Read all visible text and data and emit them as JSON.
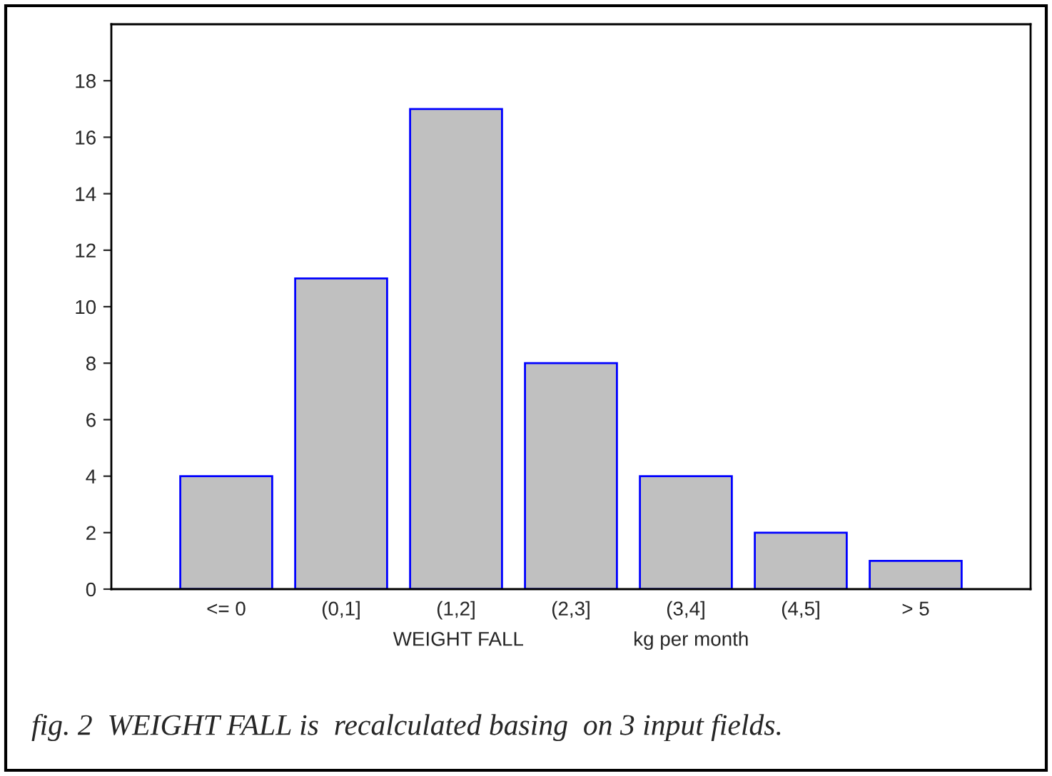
{
  "chart_data": {
    "type": "bar",
    "categories": [
      "<= 0",
      "(0,1]",
      "(1,2]",
      "(2,3]",
      "(3,4]",
      "(4,5]",
      "> 5"
    ],
    "values": [
      4,
      11,
      17,
      8,
      4,
      2,
      1
    ],
    "color": "#c0c0c0",
    "xlabel": "WEIGHT FALL                    kg per month",
    "ylim": [
      0,
      20
    ],
    "yticks": [
      0,
      2,
      4,
      6,
      8,
      10,
      12,
      14,
      16,
      18
    ],
    "grid": false,
    "legend": false,
    "annotations": [
      "fig. 2  WEIGHT FALL is  recalculated basing  on 3 input fields."
    ]
  }
}
